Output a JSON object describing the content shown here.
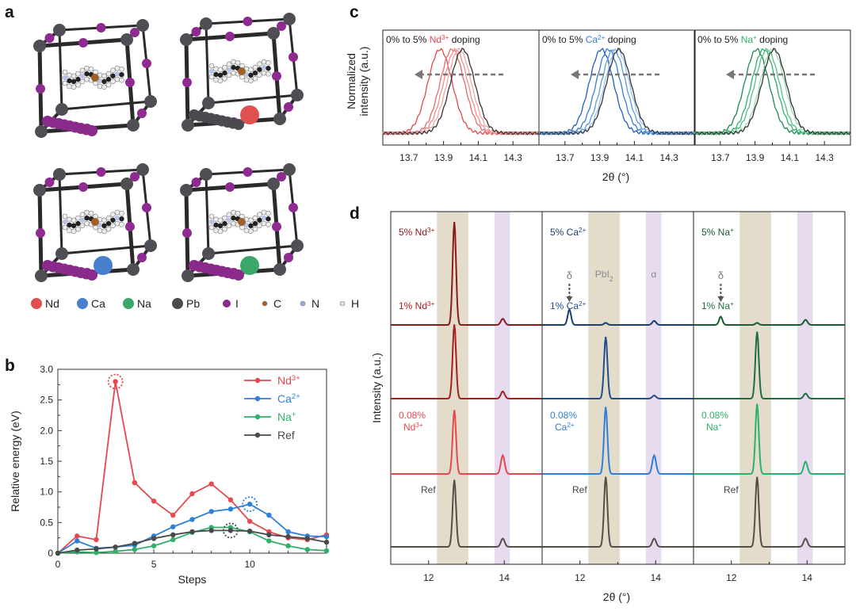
{
  "panels": {
    "a": "a",
    "b": "b",
    "c": "c",
    "d": "d"
  },
  "panel_a": {
    "legend": [
      {
        "label": "Nd",
        "color": "#e05050",
        "kind": "big"
      },
      {
        "label": "Ca",
        "color": "#4a7fd0",
        "kind": "big"
      },
      {
        "label": "Na",
        "color": "#3aa868",
        "kind": "big"
      },
      {
        "label": "Pb",
        "color": "#4a4a50",
        "kind": "big"
      },
      {
        "label": "I",
        "color": "#8a2a8a",
        "kind": "mid"
      },
      {
        "label": "C",
        "color": "#a0602a",
        "kind": "small"
      },
      {
        "label": "N",
        "color": "#9aa8d8",
        "kind": "small"
      },
      {
        "label": "H",
        "color": "#f0d8c8",
        "kind": "small"
      }
    ]
  },
  "chart_data": [
    {
      "id": "b",
      "type": "line",
      "xlabel": "Steps",
      "ylabel": "Relative energy (eV)",
      "xlim": [
        0,
        14
      ],
      "ylim": [
        0,
        3.0
      ],
      "x_ticks": [
        "0",
        "5",
        "10"
      ],
      "y_ticks": [
        "0",
        "0.5",
        "1.0",
        "1.5",
        "2.0",
        "2.5",
        "3.0"
      ],
      "x": [
        0,
        1,
        2,
        3,
        4,
        5,
        6,
        7,
        8,
        9,
        10,
        11,
        12,
        13,
        14
      ],
      "series": [
        {
          "name": "Nd",
          "sup": "3+",
          "color": "#e5484d",
          "values": [
            0,
            0.28,
            0.22,
            2.8,
            1.15,
            0.85,
            0.62,
            0.97,
            1.13,
            0.87,
            0.52,
            0.35,
            0.25,
            0.22,
            0.3
          ]
        },
        {
          "name": "Ca",
          "sup": "2+",
          "color": "#2f7fd8",
          "values": [
            0,
            0.2,
            0.08,
            0.1,
            0.13,
            0.28,
            0.43,
            0.55,
            0.68,
            0.72,
            0.8,
            0.62,
            0.35,
            0.28,
            0.27
          ]
        },
        {
          "name": "Na",
          "sup": "+",
          "color": "#2fb06a",
          "values": [
            0,
            0.02,
            0.01,
            0.03,
            0.06,
            0.12,
            0.22,
            0.34,
            0.42,
            0.42,
            0.35,
            0.2,
            0.12,
            0.06,
            0.04
          ]
        },
        {
          "name": "Ref",
          "sup": "",
          "color": "#4a4a4a",
          "values": [
            0,
            0.05,
            0.07,
            0.1,
            0.16,
            0.24,
            0.3,
            0.35,
            0.37,
            0.37,
            0.36,
            0.3,
            0.27,
            0.24,
            0.18
          ]
        }
      ],
      "highlight": [
        {
          "series": 0,
          "x": 3
        },
        {
          "series": 1,
          "x": 10
        },
        {
          "series": 3,
          "x": 9
        }
      ]
    },
    {
      "id": "c",
      "type": "line",
      "ylabel_lines": [
        "Normalized",
        "intensity (a.u.)"
      ],
      "xlabel": "2θ (°)",
      "x_ticks": [
        "13.7",
        "13.9",
        "14.1",
        "14.3"
      ],
      "xlim": [
        13.55,
        14.45
      ],
      "subpanels": [
        {
          "prefix": "0% to 5% ",
          "ion": "Nd",
          "sup": "3+",
          "suffix": " doping",
          "ion_color": "#e5484d",
          "peak_centers": [
            13.88,
            13.95,
            13.97,
            13.99,
            14.01
          ],
          "colors": [
            "#e5484d",
            "#e86b6e",
            "#ee9090",
            "#f0a8a8",
            "#333333"
          ]
        },
        {
          "prefix": "0% to 5% ",
          "ion": "Ca",
          "sup": "2+",
          "suffix": " doping",
          "ion_color": "#2f7fd8",
          "peak_centers": [
            13.91,
            13.95,
            13.98,
            14.0,
            14.01
          ],
          "colors": [
            "#1f5fc0",
            "#2f7fd8",
            "#5a9ae2",
            "#9cc2ee",
            "#333333"
          ]
        },
        {
          "prefix": "0% to 5% ",
          "ion": "Na",
          "sup": "+",
          "suffix": " doping",
          "ion_color": "#2fb06a",
          "peak_centers": [
            13.91,
            13.95,
            13.97,
            14.0,
            14.01
          ],
          "colors": [
            "#1f8a4f",
            "#2fb06a",
            "#55c186",
            "#9ad8b3",
            "#333333"
          ]
        }
      ]
    },
    {
      "id": "d",
      "type": "line",
      "ylabel": "Intensity (a.u.)",
      "xlabel": "2θ (°)",
      "xlim": [
        11,
        15
      ],
      "x_ticks": [
        "12",
        "14"
      ],
      "band_labels": {
        "delta": "δ",
        "pbi2": "PbI",
        "pbi2_sub": "2",
        "alpha": "α"
      },
      "columns": [
        {
          "ion": "Nd",
          "sup": "3+",
          "colors": [
            "#8b1a1a",
            "#a81e1e",
            "#e5484d",
            "#555047"
          ],
          "labels": [
            [
              "5% Nd"
            ],
            [
              "1% Nd"
            ],
            [
              "0.08%",
              "Nd"
            ],
            [
              "Ref"
            ]
          ],
          "delta": [
            0,
            0,
            0,
            0
          ],
          "main": [
            1.0,
            0.72,
            0.62,
            0.65
          ],
          "alpha": [
            0.06,
            0.07,
            0.18,
            0.08
          ]
        },
        {
          "ion": "Ca",
          "sup": "2+",
          "colors": [
            "#1a3f6e",
            "#1f4f8c",
            "#2f7fd8",
            "#555047"
          ],
          "labels": [
            [
              "5% Ca"
            ],
            [
              "1% Ca"
            ],
            [
              "0.08%",
              "Ca"
            ],
            [
              "Ref"
            ]
          ],
          "delta": [
            0.15,
            0,
            0,
            0
          ],
          "main": [
            0.02,
            0.6,
            0.65,
            0.68
          ],
          "alpha": [
            0.04,
            0.03,
            0.18,
            0.08
          ]
        },
        {
          "ion": "Na",
          "sup": "+",
          "colors": [
            "#1a5a34",
            "#1f6e3e",
            "#2fb06a",
            "#555047"
          ],
          "labels": [
            [
              "5% Na"
            ],
            [
              "1% Na"
            ],
            [
              "0.08%",
              "Na"
            ],
            [
              "Ref"
            ]
          ],
          "delta": [
            0.08,
            0,
            0,
            0
          ],
          "main": [
            0.02,
            0.65,
            0.68,
            0.68
          ],
          "alpha": [
            0.05,
            0.05,
            0.12,
            0.08
          ]
        }
      ]
    }
  ]
}
